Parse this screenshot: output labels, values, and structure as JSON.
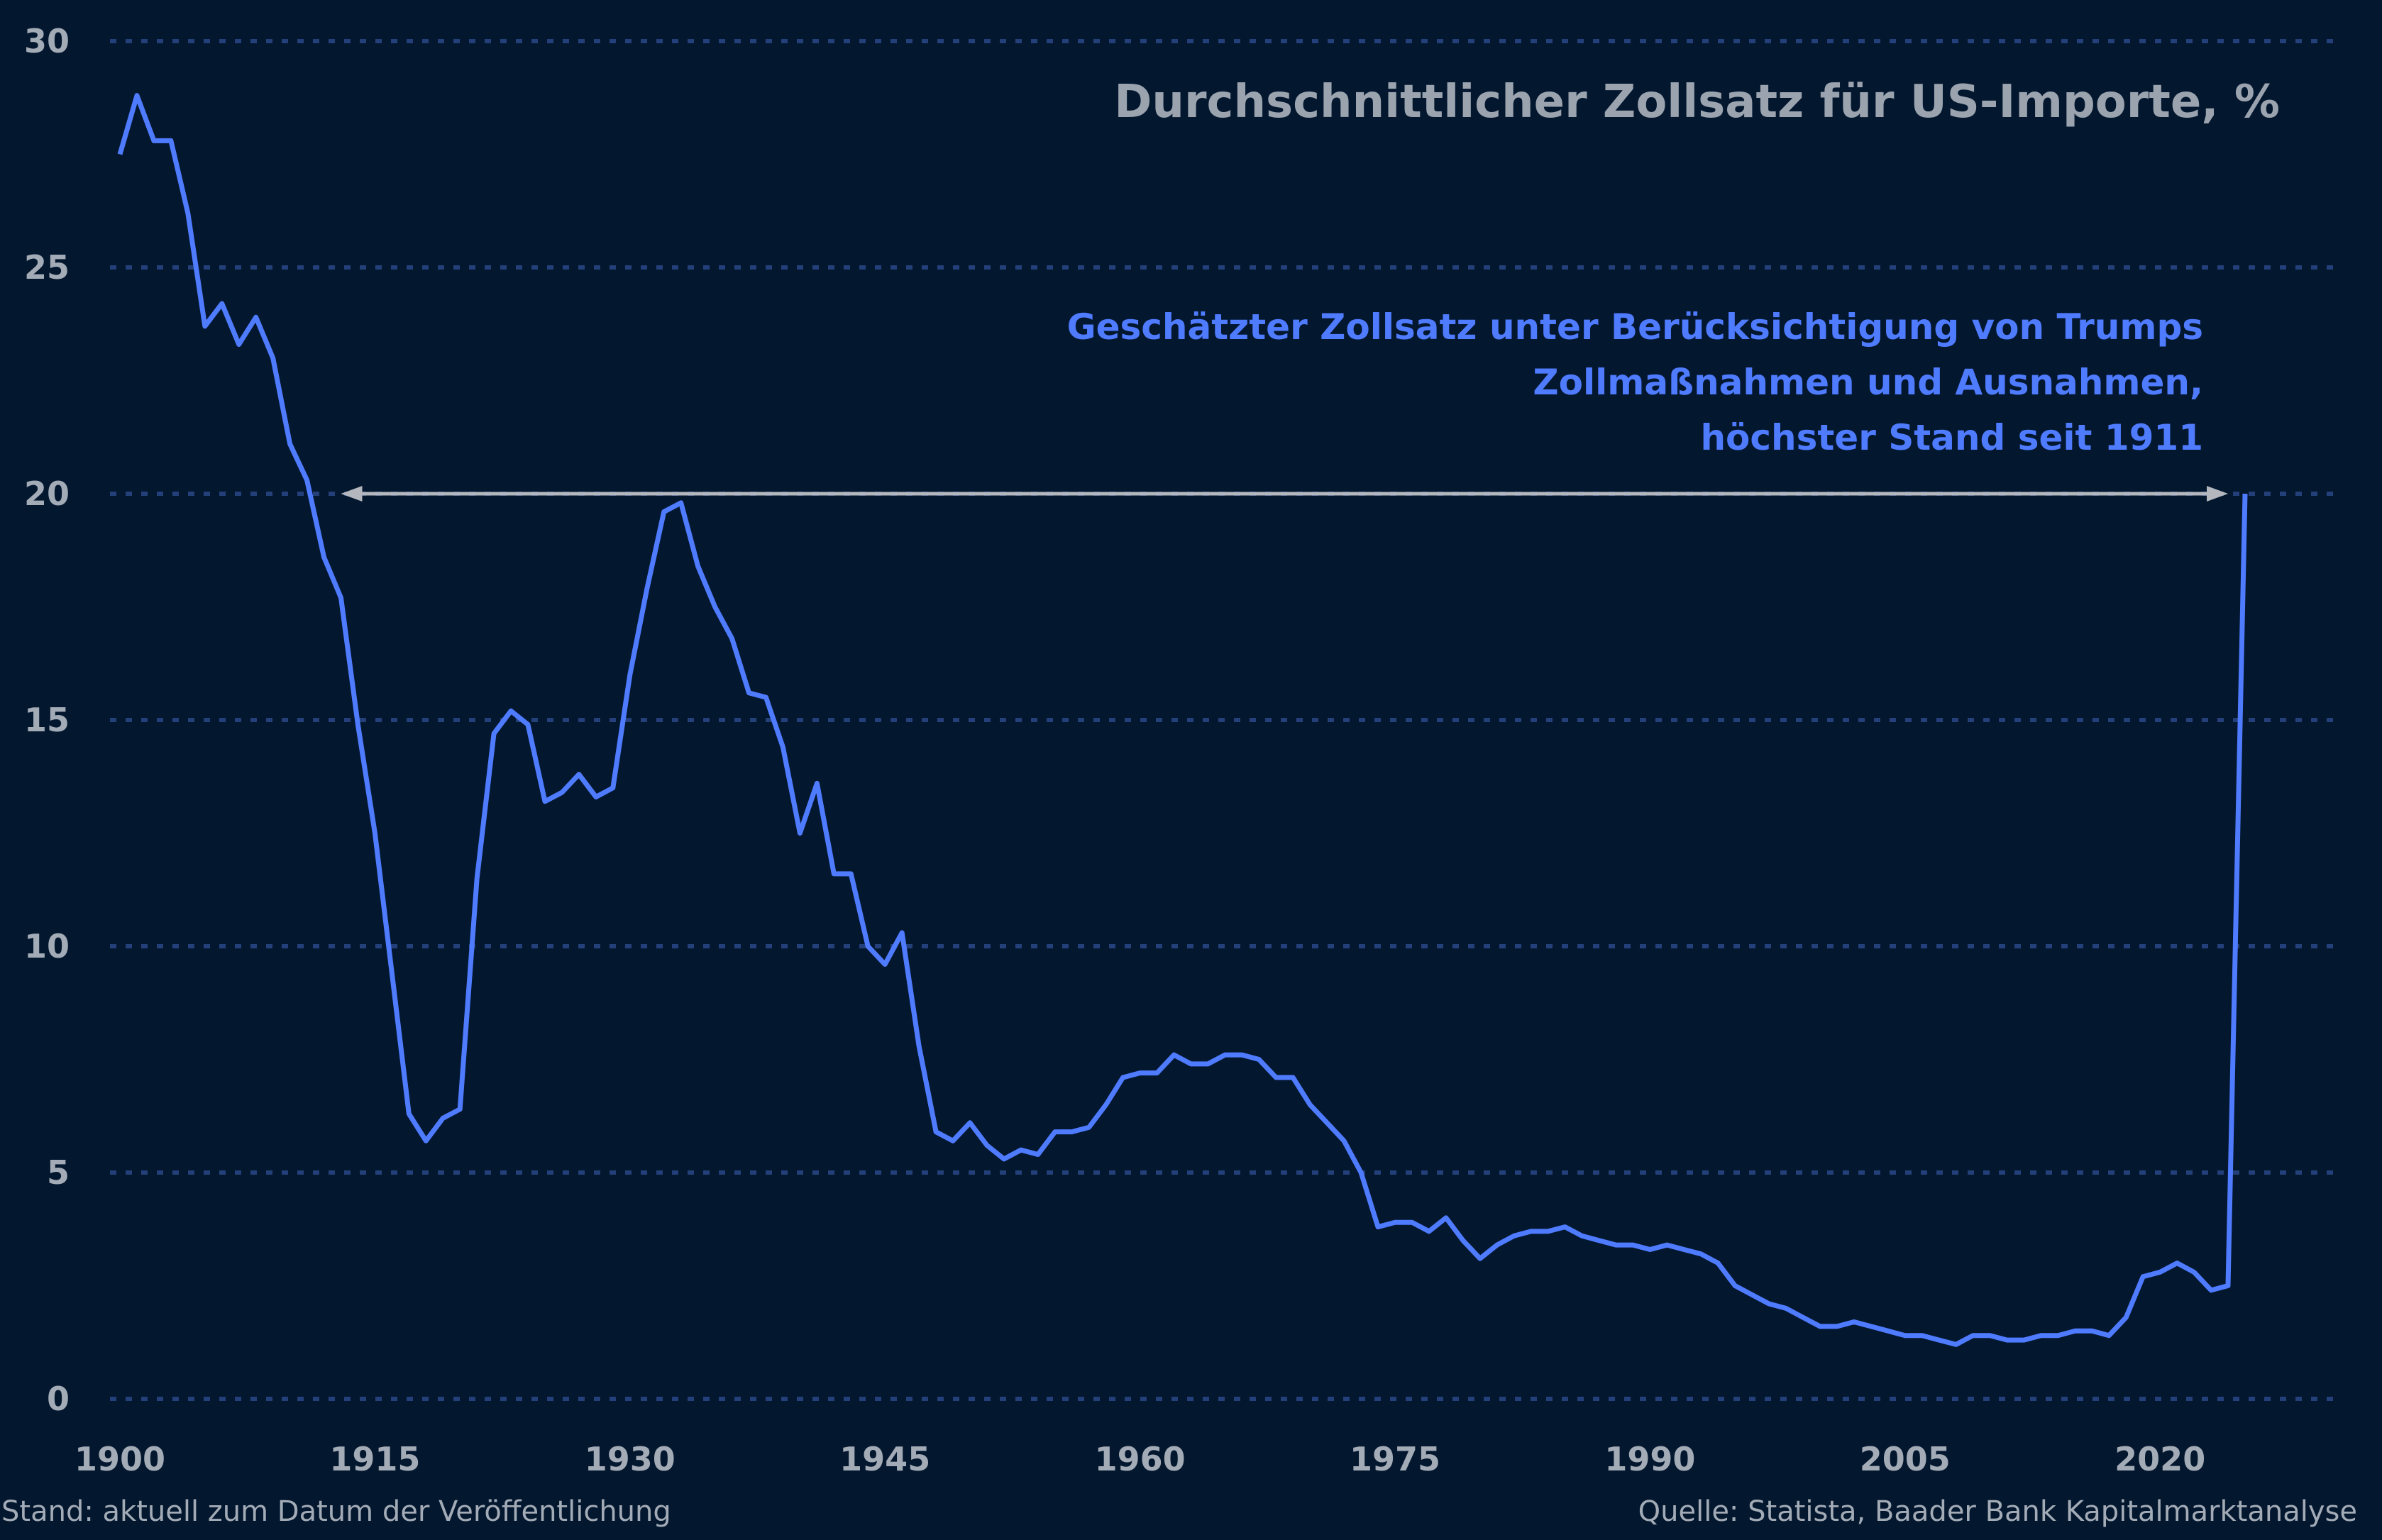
{
  "chart_data": {
    "type": "line",
    "title": "Durchschnittlicher Zollsatz für US-Importe, %",
    "xlabel": "",
    "ylabel": "",
    "xlim": [
      1900,
      2027
    ],
    "ylim": [
      0,
      30
    ],
    "x_ticks": [
      "1900",
      "1915",
      "1930",
      "1945",
      "1960",
      "1975",
      "1990",
      "2005",
      "2020"
    ],
    "y_ticks": [
      "0",
      "5",
      "10",
      "15",
      "20",
      "25",
      "30"
    ],
    "grid": "horizontal dotted",
    "line_color": "#4f7bff",
    "background": "#03172f",
    "x": [
      1900,
      1901,
      1902,
      1903,
      1904,
      1905,
      1906,
      1907,
      1908,
      1909,
      1910,
      1911,
      1912,
      1913,
      1914,
      1915,
      1916,
      1917,
      1918,
      1919,
      1920,
      1921,
      1922,
      1923,
      1924,
      1925,
      1926,
      1927,
      1928,
      1929,
      1930,
      1931,
      1932,
      1933,
      1934,
      1935,
      1936,
      1937,
      1938,
      1939,
      1940,
      1941,
      1942,
      1943,
      1944,
      1945,
      1946,
      1947,
      1948,
      1949,
      1950,
      1951,
      1952,
      1953,
      1954,
      1955,
      1956,
      1957,
      1958,
      1959,
      1960,
      1961,
      1962,
      1963,
      1964,
      1965,
      1966,
      1967,
      1968,
      1969,
      1970,
      1971,
      1972,
      1973,
      1974,
      1975,
      1976,
      1977,
      1978,
      1979,
      1980,
      1981,
      1982,
      1983,
      1984,
      1985,
      1986,
      1987,
      1988,
      1989,
      1990,
      1991,
      1992,
      1993,
      1994,
      1995,
      1996,
      1997,
      1998,
      1999,
      2000,
      2001,
      2002,
      2003,
      2004,
      2005,
      2006,
      2007,
      2008,
      2009,
      2010,
      2011,
      2012,
      2013,
      2014,
      2015,
      2016,
      2017,
      2018,
      2019,
      2020,
      2021,
      2022,
      2023,
      2024,
      2025
    ],
    "values": [
      27.5,
      28.8,
      27.8,
      27.8,
      26.2,
      23.7,
      24.2,
      23.3,
      23.9,
      23.0,
      21.1,
      20.3,
      18.6,
      17.7,
      14.9,
      12.5,
      9.4,
      6.3,
      5.7,
      6.2,
      6.4,
      11.5,
      14.7,
      15.2,
      14.9,
      13.2,
      13.4,
      13.8,
      13.3,
      13.5,
      16.0,
      17.9,
      19.6,
      19.8,
      18.4,
      17.5,
      16.8,
      15.6,
      15.5,
      14.4,
      12.5,
      13.6,
      11.6,
      11.6,
      10.0,
      9.6,
      10.3,
      7.8,
      5.9,
      5.7,
      6.1,
      5.6,
      5.3,
      5.5,
      5.4,
      5.9,
      5.9,
      6.0,
      6.5,
      7.1,
      7.2,
      7.2,
      7.6,
      7.4,
      7.4,
      7.6,
      7.6,
      7.5,
      7.1,
      7.1,
      6.5,
      6.1,
      5.7,
      5.0,
      3.8,
      3.9,
      3.9,
      3.7,
      4.0,
      3.5,
      3.1,
      3.4,
      3.6,
      3.7,
      3.7,
      3.8,
      3.6,
      3.5,
      3.4,
      3.4,
      3.3,
      3.4,
      3.3,
      3.2,
      3.0,
      2.5,
      2.3,
      2.1,
      2.0,
      1.8,
      1.6,
      1.6,
      1.7,
      1.6,
      1.5,
      1.4,
      1.4,
      1.3,
      1.2,
      1.4,
      1.4,
      1.3,
      1.3,
      1.4,
      1.4,
      1.5,
      1.5,
      1.4,
      1.8,
      2.7,
      2.8,
      3.0,
      2.8,
      2.4,
      2.5,
      20.0
    ],
    "annotation": {
      "lines": [
        "Geschätzter Zollsatz unter Berücksichtigung von Trumps",
        "Zollmaßnahmen und Ausnahmen,",
        "höchster Stand seit 1911"
      ],
      "arrow_from_year": 1913,
      "arrow_to_year": 2024,
      "arrow_value": 20,
      "arrow_color": "#b4b8be"
    }
  },
  "footer": {
    "left": "Stand: aktuell zum Datum der Veröffentlichung",
    "right": "Quelle: Statista, Baader Bank Kapitalmarktanalyse"
  }
}
